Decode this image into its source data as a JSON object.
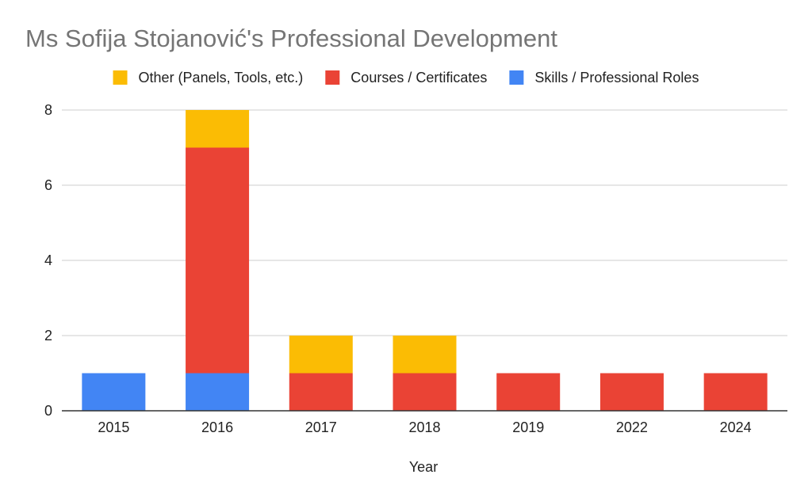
{
  "chart_data": {
    "type": "bar",
    "stacked": true,
    "title": "Ms Sofija Stojanović's Professional Development",
    "xlabel": "Year",
    "ylabel": "",
    "categories": [
      "2015",
      "2016",
      "2017",
      "2018",
      "2019",
      "2022",
      "2024"
    ],
    "ylim": [
      0,
      8
    ],
    "yticks": [
      0,
      2,
      4,
      6,
      8
    ],
    "grid": true,
    "legend_position": "top",
    "series": [
      {
        "name": "Skills / Professional Roles",
        "color": "#4285f4",
        "values": [
          1,
          1,
          0,
          0,
          0,
          0,
          0
        ]
      },
      {
        "name": "Courses / Certificates",
        "color": "#ea4335",
        "values": [
          0,
          6,
          1,
          1,
          1,
          1,
          1
        ]
      },
      {
        "name": "Other (Panels, Tools, etc.)",
        "color": "#fbbc04",
        "values": [
          0,
          1,
          1,
          1,
          0,
          0,
          0
        ]
      }
    ],
    "legend_order": [
      2,
      1,
      0
    ]
  }
}
